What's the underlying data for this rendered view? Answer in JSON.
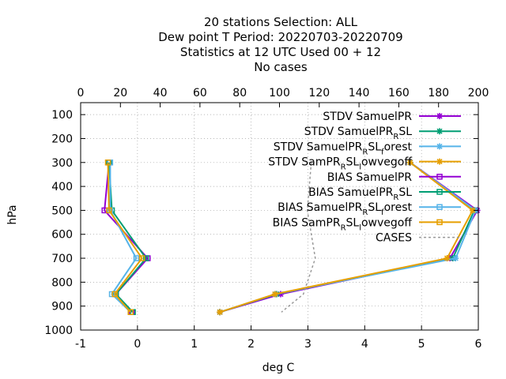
{
  "chart_data": {
    "type": "line",
    "title_lines": [
      "20 stations Selection: ALL",
      "Dew point T  Period: 20220703-20220709",
      "Statistics at 12 UTC  Used  00 + 12",
      "No cases"
    ],
    "xlabel": "deg C",
    "ylabel": "hPa",
    "xlim": [
      -1,
      6
    ],
    "x_ticks": [
      "-1",
      "0",
      "1",
      "2",
      "3",
      "4",
      "5",
      "6"
    ],
    "x2lim": [
      0,
      200
    ],
    "x2_ticks": [
      "0",
      "20",
      "40",
      "60",
      "80",
      "100",
      "120",
      "140",
      "160",
      "180",
      "200"
    ],
    "ylim": [
      1000,
      50
    ],
    "y_ticks": [
      "100",
      "200",
      "300",
      "400",
      "500",
      "600",
      "700",
      "800",
      "900",
      "1000"
    ],
    "grid": true,
    "legend_position": "top-right",
    "levels": [
      300,
      500,
      700,
      850,
      925
    ],
    "series": [
      {
        "name": "STDV SamuelPR",
        "legend_parts": [
          [
            "STDV SamuelPR",
            ""
          ]
        ],
        "color": "#9400d3",
        "marker": "star",
        "dash": false,
        "axis": "x1",
        "values": [
          4.8,
          5.98,
          5.5,
          2.52,
          1.45
        ]
      },
      {
        "name": "STDV SamuelPR_R SL",
        "legend_parts": [
          [
            "STDV SamuelPR",
            ""
          ],
          [
            "R",
            "sub"
          ],
          [
            "SL",
            ""
          ]
        ],
        "color": "#009e73",
        "marker": "star",
        "dash": false,
        "axis": "x1",
        "values": [
          4.8,
          5.93,
          5.55,
          2.45,
          1.45
        ]
      },
      {
        "name": "STDV SamuelPR_R SL_f orest",
        "legend_parts": [
          [
            "STDV SamuelPR",
            ""
          ],
          [
            "R",
            "sub"
          ],
          [
            "SL",
            ""
          ],
          [
            "f",
            "sub"
          ],
          [
            "orest",
            ""
          ]
        ],
        "color": "#56b4e9",
        "marker": "star",
        "dash": false,
        "axis": "x1",
        "values": [
          4.8,
          5.95,
          5.6,
          2.43,
          1.45
        ]
      },
      {
        "name": "STDV SamPR_R SL_l owvegoff",
        "legend_parts": [
          [
            "STDV SamPR",
            ""
          ],
          [
            "R",
            "sub"
          ],
          [
            "SL",
            ""
          ],
          [
            "l",
            "sub"
          ],
          [
            "owvegoff",
            ""
          ]
        ],
        "color": "#e69f00",
        "marker": "star",
        "dash": false,
        "axis": "x1",
        "values": [
          4.8,
          5.9,
          5.45,
          2.42,
          1.45
        ]
      },
      {
        "name": "BIAS SamuelPR",
        "legend_parts": [
          [
            "BIAS SamuelPR",
            ""
          ]
        ],
        "color": "#9400d3",
        "marker": "square",
        "dash": false,
        "axis": "x1",
        "values": [
          -0.5,
          -0.58,
          0.18,
          -0.38,
          -0.1
        ]
      },
      {
        "name": "BIAS SamuelPR_R SL",
        "legend_parts": [
          [
            "BIAS SamuelPR",
            ""
          ],
          [
            "R",
            "sub"
          ],
          [
            "SL",
            ""
          ]
        ],
        "color": "#009e73",
        "marker": "square",
        "dash": false,
        "axis": "x1",
        "values": [
          -0.5,
          -0.45,
          0.15,
          -0.38,
          -0.08
        ]
      },
      {
        "name": "BIAS SamuelPR_R SL_f orest",
        "legend_parts": [
          [
            "BIAS SamuelPR",
            ""
          ],
          [
            "R",
            "sub"
          ],
          [
            "SL",
            ""
          ],
          [
            "f",
            "sub"
          ],
          [
            "orest",
            ""
          ]
        ],
        "color": "#56b4e9",
        "marker": "square",
        "dash": false,
        "axis": "x1",
        "values": [
          -0.48,
          -0.48,
          -0.02,
          -0.45,
          -0.12
        ]
      },
      {
        "name": "BIAS SamPR_R SL_l owvegoff",
        "legend_parts": [
          [
            "BIAS SamPR",
            ""
          ],
          [
            "R",
            "sub"
          ],
          [
            "SL",
            ""
          ],
          [
            "l",
            "sub"
          ],
          [
            "owvegoff",
            ""
          ]
        ],
        "color": "#e69f00",
        "marker": "square",
        "dash": false,
        "axis": "x1",
        "values": [
          -0.52,
          -0.5,
          0.08,
          -0.4,
          -0.12
        ]
      },
      {
        "name": "CASES",
        "legend_parts": [
          [
            "CASES",
            ""
          ]
        ],
        "color": "#999999",
        "marker": "none",
        "dash": true,
        "axis": "x2",
        "values": [
          116,
          114,
          118,
          112,
          101
        ]
      }
    ]
  }
}
